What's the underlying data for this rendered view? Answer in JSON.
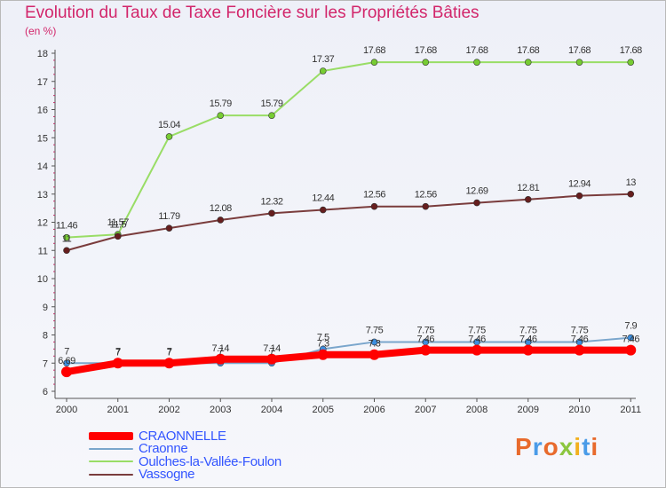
{
  "title": "Evolution du Taux de Taxe Foncière sur les Propriétés Bâties",
  "unit": "(en %)",
  "logo": "Proxiti",
  "chart_data": {
    "type": "line",
    "title": "Evolution du Taux de Taxe Foncière sur les Propriétés Bâties",
    "ylabel": "(en %)",
    "xlabel": "",
    "ylim": [
      6,
      18
    ],
    "yticks": [
      6,
      7,
      8,
      9,
      10,
      11,
      12,
      13,
      14,
      15,
      16,
      17,
      18
    ],
    "grid": false,
    "legend_position": "bottom-left",
    "x": [
      "2000",
      "2001",
      "2002",
      "2003",
      "2004",
      "2005",
      "2006",
      "2007",
      "2008",
      "2009",
      "2010",
      "2011"
    ],
    "series": [
      {
        "name": "CRAONNELLE",
        "color": "#ff0000",
        "marker": "#ff0000",
        "values": [
          6.69,
          7,
          7,
          7.14,
          7.14,
          7.3,
          7.3,
          7.46,
          7.46,
          7.46,
          7.46,
          7.46
        ],
        "labels": [
          "6.69",
          "7",
          "7",
          "7.14",
          "7.14",
          "7.3",
          "7.3",
          "7.46",
          "7.46",
          "7.46",
          "7.46",
          "7.46"
        ]
      },
      {
        "name": "Craonne",
        "color": "#7aa6cc",
        "marker": "#3d8fe0",
        "values": [
          7,
          7,
          7,
          7,
          7,
          7.5,
          7.75,
          7.75,
          7.75,
          7.75,
          7.75,
          7.9
        ],
        "labels": [
          "7",
          "7",
          "7",
          "7",
          "7",
          "7.5",
          "7.75",
          "7.75",
          "7.75",
          "7.75",
          "7.75",
          "7.9"
        ]
      },
      {
        "name": "Oulches-la-Vallée-Foulon",
        "color": "#99dd66",
        "marker": "#77cc33",
        "values": [
          11.46,
          11.57,
          15.04,
          15.79,
          15.79,
          17.37,
          17.68,
          17.68,
          17.68,
          17.68,
          17.68,
          17.68
        ],
        "labels": [
          "11.46",
          "11.57",
          "15.04",
          "15.79",
          "15.79",
          "17.37",
          "17.68",
          "17.68",
          "17.68",
          "17.68",
          "17.68",
          "17.68"
        ]
      },
      {
        "name": "Vassogne",
        "color": "#7a3c3c",
        "marker": "#661e1e",
        "values": [
          11,
          11.5,
          11.79,
          12.08,
          12.32,
          12.44,
          12.56,
          12.56,
          12.69,
          12.81,
          12.94,
          13
        ],
        "labels": [
          "11",
          "11.5",
          "11.79",
          "12.08",
          "12.32",
          "12.44",
          "12.56",
          "12.56",
          "12.69",
          "12.81",
          "12.94",
          "13"
        ]
      }
    ]
  }
}
